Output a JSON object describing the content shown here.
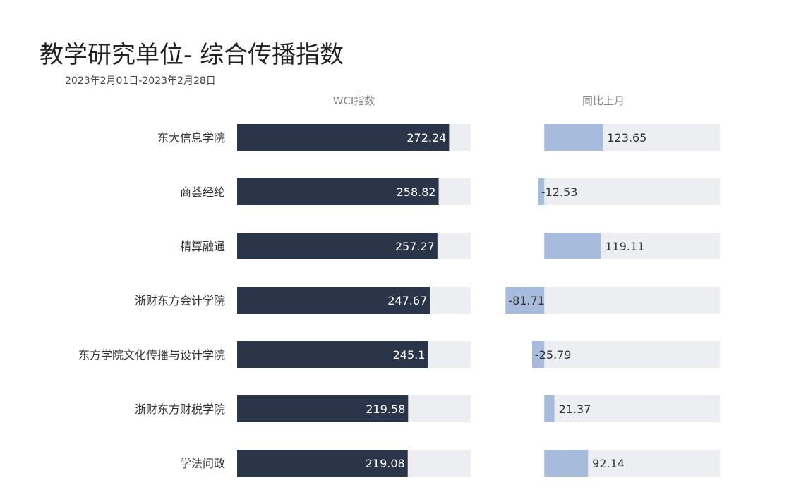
{
  "title": "教学研究单位- 综合传播指数",
  "subtitle": "2023年2月01日-2023年2月28日",
  "colors": {
    "wci_bar": "#2b3549",
    "change_bar": "#a7bbdd",
    "track": "#eceef2",
    "wci_label": "#ffffff",
    "change_label": "#333333",
    "header": "#888888",
    "category": "#333333"
  },
  "chart_data": [
    {
      "type": "bar",
      "orientation": "horizontal",
      "header": "WCI指数",
      "categories": [
        "东大信息学院",
        "商荟经纶",
        "精算融通",
        "浙财东方会计学院",
        "东方学院文化传播与设计学院",
        "浙财东方财税学院",
        "学法问政"
      ],
      "values": [
        272.24,
        258.82,
        257.27,
        247.67,
        245.1,
        219.58,
        219.08
      ],
      "xlim": [
        0,
        300
      ]
    },
    {
      "type": "bar",
      "orientation": "horizontal",
      "header": "同比上月",
      "categories": [
        "东大信息学院",
        "商荟经纶",
        "精算融通",
        "浙财东方会计学院",
        "东方学院文化传播与设计学院",
        "浙财东方财税学院",
        "学法问政"
      ],
      "values": [
        123.65,
        -12.53,
        119.11,
        -81.71,
        -25.79,
        21.37,
        92.14
      ],
      "xlim": [
        -100,
        370
      ]
    }
  ]
}
